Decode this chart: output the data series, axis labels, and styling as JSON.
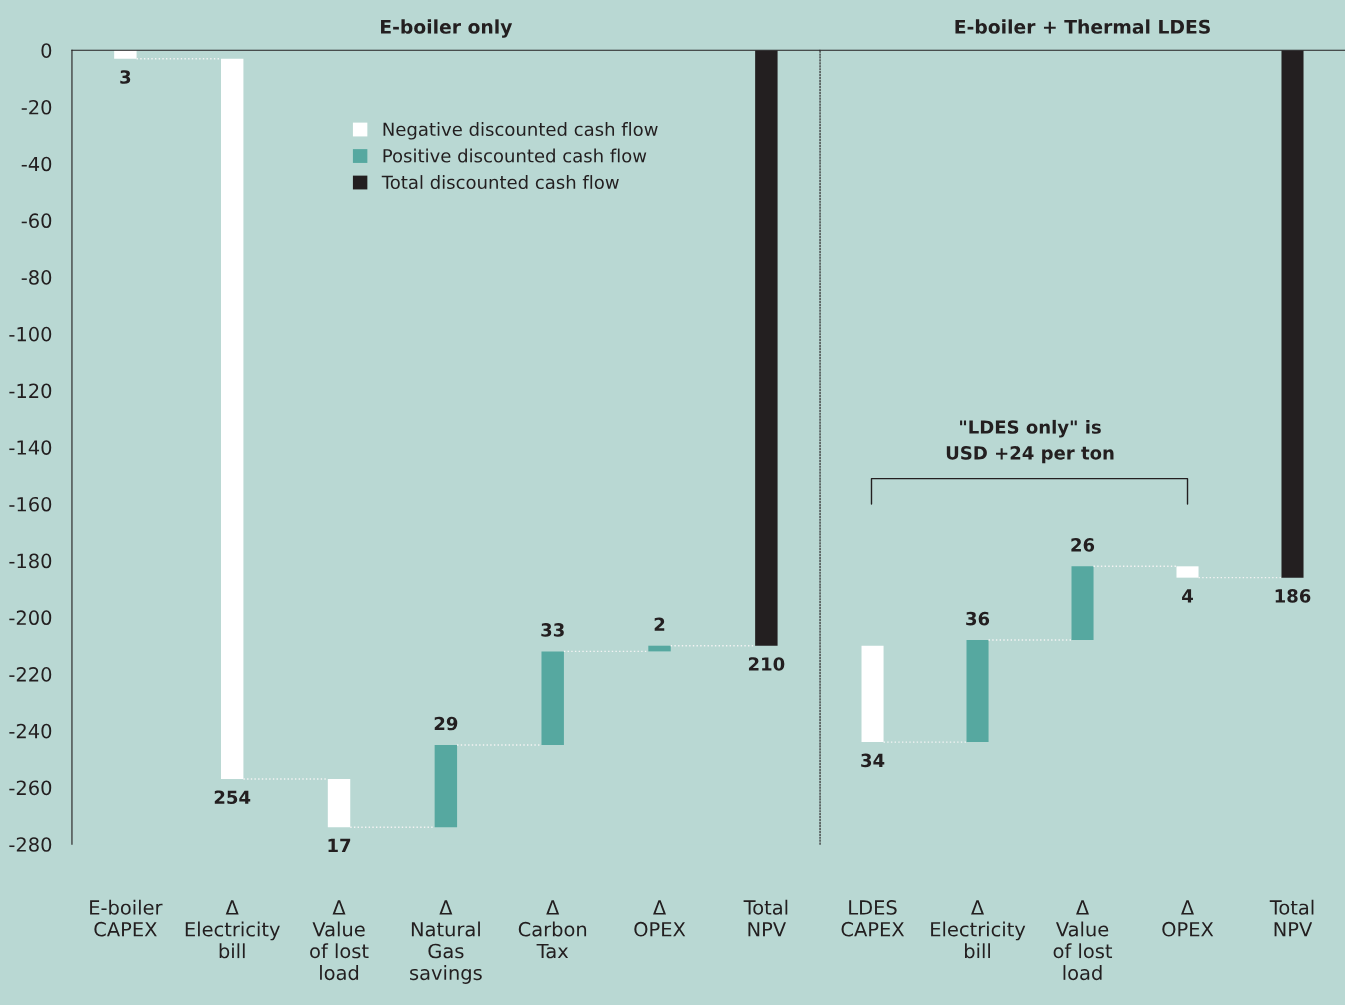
{
  "chart_data": [
    {
      "type": "bar",
      "title": "E-boiler only",
      "categories": [
        "E-boiler\nCAPEX",
        "Δ\nElectricity\nbill",
        "Δ\nValue\nof lost\nload",
        "Δ\nNatural\nGas\nsavings",
        "Δ\nCarbon\nTax",
        "Δ\nOPEX",
        "Total\nNPV"
      ],
      "series": [
        {
          "name": "Negative discounted cash flow",
          "color": "#ffffff",
          "base": [
            -3,
            -257,
            -274,
            null,
            null,
            null,
            null
          ],
          "values": [
            3,
            254,
            17,
            null,
            null,
            null,
            null
          ],
          "value_labels": [
            "3",
            "254",
            "17",
            null,
            null,
            null,
            null
          ]
        },
        {
          "name": "Positive discounted cash flow",
          "color": "#56a8a0",
          "base": [
            null,
            null,
            null,
            -274,
            -245,
            -212,
            null
          ],
          "values": [
            null,
            null,
            null,
            29,
            33,
            2,
            null
          ],
          "value_labels": [
            null,
            null,
            null,
            "29",
            "33",
            "2",
            null
          ]
        },
        {
          "name": "Total discounted cash flow",
          "color": "#231f20",
          "base": [
            null,
            null,
            null,
            null,
            null,
            null,
            -210
          ],
          "values": [
            null,
            null,
            null,
            null,
            null,
            null,
            210
          ],
          "value_labels": [
            null,
            null,
            null,
            null,
            null,
            null,
            "210"
          ]
        }
      ],
      "ylim": [
        -280,
        0
      ],
      "yticks": [
        0,
        -20,
        -40,
        -60,
        -80,
        -100,
        -120,
        -140,
        -160,
        -180,
        -200,
        -220,
        -240,
        -260,
        -280
      ],
      "legend": "top",
      "grid": false
    },
    {
      "type": "bar",
      "title": "E-boiler + Thermal LDES",
      "categories": [
        "LDES\nCAPEX",
        "Δ\nElectricity\nbill",
        "Δ\nValue\nof lost\nload",
        "Δ\nOPEX",
        "Total\nNPV"
      ],
      "series": [
        {
          "color": "#ffffff",
          "base": [
            -244,
            null,
            null,
            -186,
            null
          ],
          "values": [
            34,
            null,
            null,
            4,
            null
          ],
          "value_labels": [
            "34",
            null,
            null,
            "4",
            null
          ]
        },
        {
          "color": "#56a8a0",
          "base": [
            null,
            -244,
            -208,
            null,
            null
          ],
          "values": [
            null,
            36,
            26,
            null,
            null
          ],
          "value_labels": [
            null,
            "36",
            "26",
            null,
            null
          ]
        },
        {
          "color": "#231f20",
          "base": [
            null,
            null,
            null,
            null,
            -186
          ],
          "values": [
            null,
            null,
            null,
            null,
            186
          ],
          "value_labels": [
            null,
            null,
            null,
            null,
            "186"
          ]
        }
      ],
      "ylim": [
        -280,
        0
      ],
      "tick_labels": "x",
      "grid": false,
      "annotations": [
        "\"LDES only\" is\nUSD +24 per ton"
      ]
    }
  ]
}
